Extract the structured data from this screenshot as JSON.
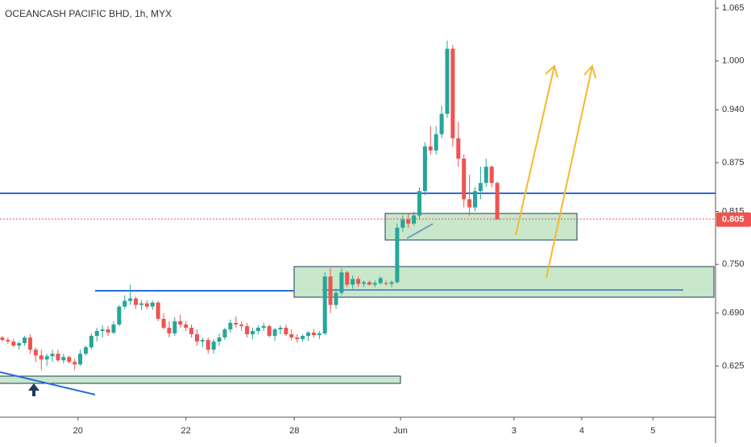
{
  "chart_data": {
    "type": "candlestick",
    "title": "OCEANCASH PACIFIC BHD, 1h, MYX",
    "up_color": "#26a69a",
    "down_color": "#ef5350",
    "ylim": [
      0.562,
      1.075
    ],
    "yticks": [
      {
        "value": 0.625,
        "label": "0.625"
      },
      {
        "value": 0.69,
        "label": "0.690"
      },
      {
        "value": 0.75,
        "label": "0.750"
      },
      {
        "value": 0.815,
        "label": "0.815"
      },
      {
        "value": 0.875,
        "label": "0.875"
      },
      {
        "value": 0.94,
        "label": "0.940"
      },
      {
        "value": 1.0,
        "label": "1.000"
      },
      {
        "value": 1.065,
        "label": "1.065"
      }
    ],
    "xlim": [
      -0.43,
      128.26
    ],
    "xticks": [
      {
        "value": 13.6,
        "label": "20"
      },
      {
        "value": 33.0,
        "label": "22"
      },
      {
        "value": 52.5,
        "label": "28"
      },
      {
        "value": 71.6,
        "label": "Jun"
      },
      {
        "value": 92.0,
        "label": "3"
      },
      {
        "value": 104.2,
        "label": "4"
      },
      {
        "value": 117.0,
        "label": "5"
      }
    ],
    "last_price": {
      "value": 0.805,
      "label": "0.805",
      "color": "#ef5350"
    },
    "open": [
      0.66,
      0.657,
      0.655,
      0.65,
      0.653,
      0.66,
      0.645,
      0.638,
      0.633,
      0.637,
      0.64,
      0.632,
      0.636,
      0.63,
      0.627,
      0.64,
      0.648,
      0.662,
      0.668,
      0.67,
      0.666,
      0.676,
      0.698,
      0.705,
      0.708,
      0.7,
      0.702,
      0.698,
      0.703,
      0.683,
      0.672,
      0.665,
      0.68,
      0.676,
      0.672,
      0.664,
      0.655,
      0.657,
      0.645,
      0.655,
      0.66,
      0.67,
      0.678,
      0.676,
      0.674,
      0.664,
      0.668,
      0.672,
      0.674,
      0.662,
      0.67,
      0.672,
      0.664,
      0.66,
      0.658,
      0.662,
      0.666,
      0.663,
      0.665,
      0.735,
      0.7,
      0.715,
      0.74,
      0.725,
      0.732,
      0.726,
      0.728,
      0.725,
      0.727,
      0.727,
      0.726,
      0.728,
      0.795,
      0.805,
      0.8,
      0.81,
      0.84,
      0.895,
      0.89,
      0.91,
      0.935,
      1.015,
      0.905,
      0.88,
      0.83,
      0.82,
      0.84,
      0.85,
      0.87,
      0.85
    ],
    "high": [
      0.662,
      0.66,
      0.658,
      0.655,
      0.662,
      0.664,
      0.648,
      0.645,
      0.64,
      0.645,
      0.645,
      0.64,
      0.638,
      0.634,
      0.645,
      0.65,
      0.665,
      0.672,
      0.675,
      0.674,
      0.68,
      0.7,
      0.712,
      0.725,
      0.71,
      0.706,
      0.706,
      0.705,
      0.705,
      0.69,
      0.68,
      0.685,
      0.688,
      0.68,
      0.676,
      0.67,
      0.66,
      0.66,
      0.658,
      0.665,
      0.672,
      0.682,
      0.686,
      0.68,
      0.678,
      0.672,
      0.675,
      0.678,
      0.676,
      0.672,
      0.675,
      0.676,
      0.67,
      0.664,
      0.664,
      0.668,
      0.67,
      0.668,
      0.74,
      0.745,
      0.72,
      0.745,
      0.742,
      0.736,
      0.735,
      0.73,
      0.73,
      0.73,
      0.735,
      0.73,
      0.73,
      0.8,
      0.81,
      0.812,
      0.815,
      0.845,
      0.9,
      0.92,
      0.92,
      0.945,
      1.025,
      1.02,
      0.925,
      0.885,
      0.86,
      0.845,
      0.87,
      0.88,
      0.872,
      0.852
    ],
    "low": [
      0.655,
      0.652,
      0.648,
      0.645,
      0.65,
      0.64,
      0.63,
      0.62,
      0.625,
      0.63,
      0.63,
      0.628,
      0.628,
      0.62,
      0.625,
      0.638,
      0.645,
      0.655,
      0.66,
      0.662,
      0.664,
      0.674,
      0.695,
      0.7,
      0.695,
      0.694,
      0.695,
      0.694,
      0.68,
      0.67,
      0.66,
      0.662,
      0.672,
      0.668,
      0.66,
      0.65,
      0.648,
      0.64,
      0.64,
      0.65,
      0.657,
      0.666,
      0.672,
      0.668,
      0.66,
      0.658,
      0.664,
      0.668,
      0.66,
      0.656,
      0.664,
      0.662,
      0.656,
      0.654,
      0.655,
      0.656,
      0.66,
      0.658,
      0.663,
      0.69,
      0.695,
      0.712,
      0.722,
      0.72,
      0.722,
      0.722,
      0.724,
      0.722,
      0.725,
      0.724,
      0.722,
      0.726,
      0.79,
      0.795,
      0.798,
      0.805,
      0.835,
      0.885,
      0.885,
      0.905,
      0.93,
      0.895,
      0.87,
      0.82,
      0.81,
      0.815,
      0.83,
      0.845,
      0.845,
      0.805
    ],
    "close": [
      0.657,
      0.655,
      0.65,
      0.653,
      0.66,
      0.645,
      0.638,
      0.633,
      0.637,
      0.64,
      0.632,
      0.636,
      0.63,
      0.627,
      0.64,
      0.648,
      0.662,
      0.668,
      0.67,
      0.666,
      0.676,
      0.698,
      0.705,
      0.708,
      0.7,
      0.702,
      0.698,
      0.703,
      0.683,
      0.672,
      0.665,
      0.68,
      0.676,
      0.672,
      0.664,
      0.655,
      0.657,
      0.645,
      0.655,
      0.66,
      0.67,
      0.678,
      0.676,
      0.674,
      0.664,
      0.668,
      0.672,
      0.674,
      0.662,
      0.67,
      0.672,
      0.664,
      0.66,
      0.658,
      0.662,
      0.666,
      0.663,
      0.665,
      0.735,
      0.7,
      0.715,
      0.74,
      0.725,
      0.732,
      0.726,
      0.728,
      0.725,
      0.727,
      0.733,
      0.726,
      0.728,
      0.795,
      0.805,
      0.8,
      0.81,
      0.84,
      0.895,
      0.89,
      0.91,
      0.935,
      1.015,
      0.905,
      0.88,
      0.83,
      0.82,
      0.84,
      0.85,
      0.87,
      0.85,
      0.805
    ]
  }
}
